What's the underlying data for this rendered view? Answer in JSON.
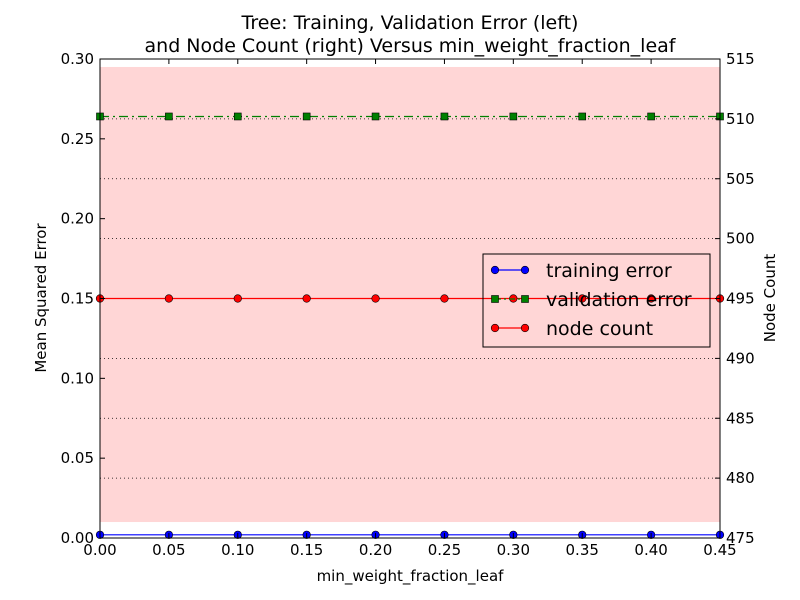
{
  "chart_data": {
    "type": "line",
    "title_lines": [
      "Tree: Training, Validation Error (left)",
      "and Node Count (right) Versus min_weight_fraction_leaf"
    ],
    "xlabel": "min_weight_fraction_leaf",
    "ylabel_left": "Mean Squared Error",
    "ylabel_right": "Node Count",
    "x": [
      0.0,
      0.05,
      0.1,
      0.15,
      0.2,
      0.25,
      0.3,
      0.35,
      0.4,
      0.45
    ],
    "xlim": [
      0.0,
      0.45
    ],
    "ylim_left": [
      0.0,
      0.3
    ],
    "ylim_right": [
      475,
      515
    ],
    "x_ticks": [
      "0.00",
      "0.05",
      "0.10",
      "0.15",
      "0.20",
      "0.25",
      "0.30",
      "0.35",
      "0.40",
      "0.45"
    ],
    "y_left_ticks": [
      "0.00",
      "0.05",
      "0.10",
      "0.15",
      "0.20",
      "0.25",
      "0.30"
    ],
    "y_right_ticks": [
      "475",
      "480",
      "485",
      "490",
      "495",
      "500",
      "505",
      "510",
      "515"
    ],
    "band": {
      "ymin": 0.01,
      "ymax": 0.295,
      "color": "#ffd6d6",
      "axis": "left"
    },
    "grid": "dotted horizontal at right-axis ticks",
    "series": [
      {
        "name": "training error",
        "axis": "left",
        "values": [
          0.002,
          0.002,
          0.002,
          0.002,
          0.002,
          0.002,
          0.002,
          0.002,
          0.002,
          0.002
        ],
        "color": "#0000ff",
        "marker": "circle",
        "linestyle": "solid"
      },
      {
        "name": "validation error",
        "axis": "left",
        "values": [
          0.264,
          0.264,
          0.264,
          0.264,
          0.264,
          0.264,
          0.264,
          0.264,
          0.264,
          0.264
        ],
        "color": "#008000",
        "marker": "square",
        "linestyle": "dashdot"
      },
      {
        "name": "node count",
        "axis": "right",
        "values": [
          495,
          495,
          495,
          495,
          495,
          495,
          495,
          495,
          495,
          495
        ],
        "color": "#ff0000",
        "marker": "circle",
        "linestyle": "solid"
      }
    ],
    "legend": {
      "placement": "center-right",
      "entries": [
        "training error",
        "validation error",
        "node count"
      ]
    }
  }
}
